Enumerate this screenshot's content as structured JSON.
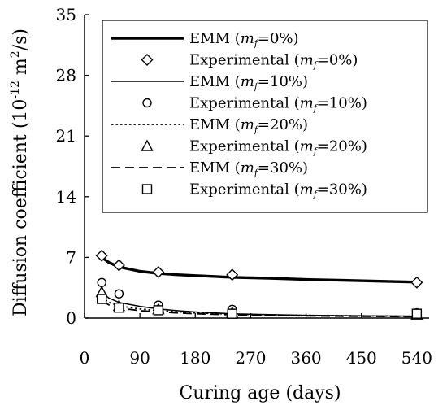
{
  "chart_data": {
    "type": "line",
    "xlabel": "Curing age (days)",
    "ylabel_main": "Diffusion coefficient (10",
    "ylabel_exp": "-12",
    "ylabel_mid": " m",
    "ylabel_exp2": "2",
    "ylabel_end": "/s)",
    "xlim": [
      0,
      560
    ],
    "ylim": [
      0,
      35
    ],
    "xticks": [
      0,
      90,
      180,
      270,
      360,
      450,
      540
    ],
    "yticks": [
      0,
      7,
      14,
      21,
      28,
      35
    ],
    "grid": false,
    "legend_position": "top-right",
    "emm_series": [
      {
        "name": "EMM (mf=0%)",
        "style": "thick",
        "x": [
          28,
          40,
          56,
          90,
          120,
          150,
          180,
          210,
          240,
          300,
          360,
          420,
          480,
          540
        ],
        "y": [
          7.0,
          6.4,
          5.9,
          5.4,
          5.15,
          5.0,
          4.9,
          4.8,
          4.7,
          4.6,
          4.45,
          4.35,
          4.25,
          4.15
        ]
      },
      {
        "name": "EMM (mf=10%)",
        "style": "solid",
        "x": [
          28,
          40,
          56,
          90,
          120,
          150,
          180,
          240,
          300,
          360,
          450,
          540
        ],
        "y": [
          2.9,
          2.3,
          1.8,
          1.35,
          1.05,
          0.85,
          0.7,
          0.5,
          0.4,
          0.32,
          0.26,
          0.22
        ]
      },
      {
        "name": "EMM (mf=20%)",
        "style": "dotted",
        "x": [
          28,
          40,
          56,
          90,
          120,
          180,
          240,
          300,
          360,
          450,
          540
        ],
        "y": [
          2.4,
          1.8,
          1.4,
          1.05,
          0.85,
          0.6,
          0.45,
          0.36,
          0.3,
          0.25,
          0.2
        ]
      },
      {
        "name": "EMM (mf=30%)",
        "style": "dashed",
        "x": [
          28,
          40,
          56,
          90,
          120,
          180,
          240,
          300,
          360,
          450,
          540
        ],
        "y": [
          2.0,
          1.5,
          1.15,
          0.85,
          0.7,
          0.5,
          0.38,
          0.3,
          0.25,
          0.2,
          0.16
        ]
      }
    ],
    "experimental_series": [
      {
        "name": "Experimental (mf=0%)",
        "marker": "diamond",
        "x": [
          28,
          56,
          120,
          240,
          540
        ],
        "y": [
          7.2,
          6.1,
          5.3,
          5.0,
          4.1
        ]
      },
      {
        "name": "Experimental (mf=10%)",
        "marker": "circle",
        "x": [
          28,
          56,
          120,
          240,
          540
        ],
        "y": [
          4.1,
          2.8,
          1.5,
          1.0,
          0.6
        ]
      },
      {
        "name": "Experimental (mf=20%)",
        "marker": "triangle",
        "x": [
          28,
          56,
          120,
          240,
          540
        ],
        "y": [
          3.0,
          1.4,
          1.0,
          0.6,
          0.4
        ]
      },
      {
        "name": "Experimental (mf=30%)",
        "marker": "square",
        "x": [
          28,
          56,
          120,
          240,
          540
        ],
        "y": [
          2.2,
          1.2,
          0.9,
          0.5,
          0.5
        ]
      }
    ],
    "legend": [
      {
        "kind": "line",
        "style": "thick",
        "prefix": "EMM (",
        "var": "m",
        "sub": "f",
        "suffix": "=0%)"
      },
      {
        "kind": "marker",
        "marker": "diamond",
        "prefix": "Experimental (",
        "var": "m",
        "sub": "f",
        "suffix": "=0%)"
      },
      {
        "kind": "line",
        "style": "solid",
        "prefix": "EMM (",
        "var": "m",
        "sub": "f",
        "suffix": "=10%)"
      },
      {
        "kind": "marker",
        "marker": "circle",
        "prefix": "Experimental (",
        "var": "m",
        "sub": "f",
        "suffix": "=10%)"
      },
      {
        "kind": "line",
        "style": "dotted",
        "prefix": "EMM (",
        "var": "m",
        "sub": "f",
        "suffix": "=20%)"
      },
      {
        "kind": "marker",
        "marker": "triangle",
        "prefix": "Experimental (",
        "var": "m",
        "sub": "f",
        "suffix": "=20%)"
      },
      {
        "kind": "line",
        "style": "dashed",
        "prefix": "EMM (",
        "var": "m",
        "sub": "f",
        "suffix": "=30%)"
      },
      {
        "kind": "marker",
        "marker": "square",
        "prefix": "Experimental (",
        "var": "m",
        "sub": "f",
        "suffix": "=30%)"
      }
    ]
  }
}
